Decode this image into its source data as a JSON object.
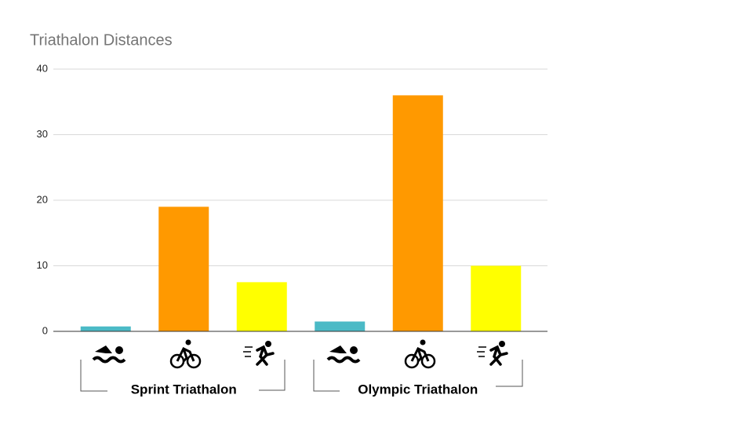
{
  "chart_data": {
    "type": "bar",
    "title": "Triathalon Distances",
    "categories": [
      null,
      null,
      null,
      null,
      null,
      null
    ],
    "groups": [
      "Sprint Triathalon",
      "Olympic Triathalon"
    ],
    "values": [
      0.75,
      19,
      7.5,
      1.5,
      36,
      10
    ],
    "colors": [
      "#4bbac6",
      "#ff9900",
      "#ffff00",
      "#4bbac6",
      "#ff9900",
      "#ffff00"
    ],
    "ylim": [
      0,
      40
    ],
    "yticks": [
      0,
      10,
      20,
      30,
      40
    ],
    "grid": true
  }
}
